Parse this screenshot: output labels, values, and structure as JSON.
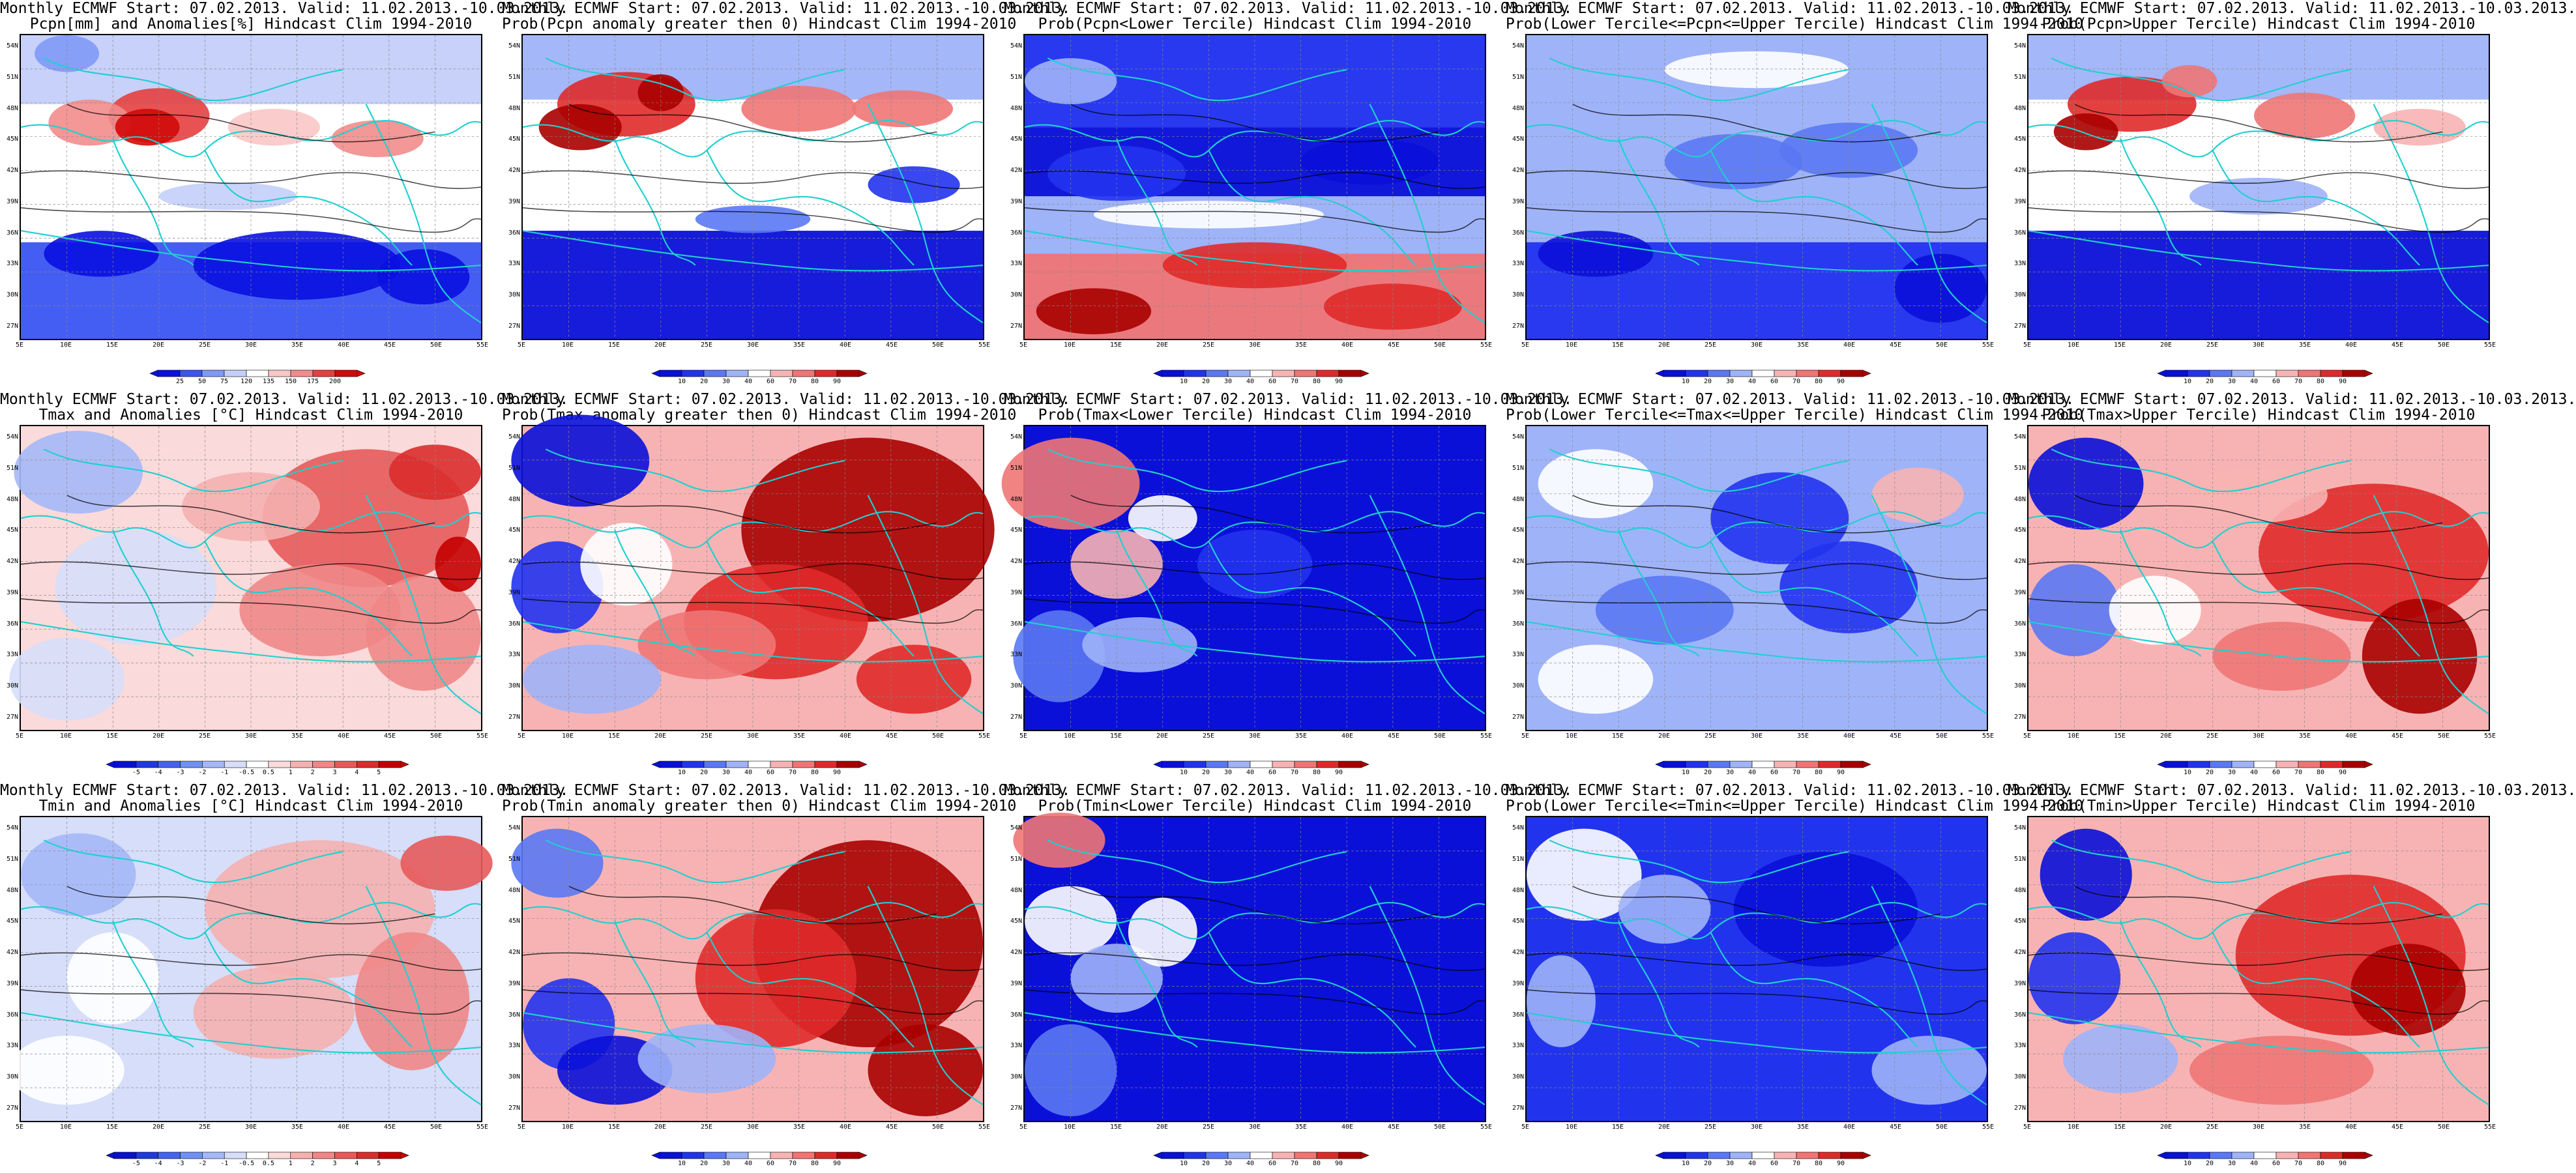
{
  "map": {
    "lat_labels": [
      "54N",
      "51N",
      "48N",
      "45N",
      "42N",
      "39N",
      "36N",
      "33N",
      "30N",
      "27N"
    ],
    "lon_labels": [
      "5E",
      "10E",
      "15E",
      "20E",
      "25E",
      "30E",
      "35E",
      "40E",
      "45E",
      "50E",
      "55E"
    ]
  },
  "colorbars": {
    "anom_pcpn": {
      "labels": [
        "25",
        "50",
        "75",
        "120",
        "135",
        "150",
        "175",
        "200"
      ],
      "colors": [
        "#0a10e0",
        "#3a55f2",
        "#7f99f6",
        "#c4cff9",
        "#ffffff",
        "#f9c7c7",
        "#f28c8c",
        "#e63f3f",
        "#d00a0a"
      ]
    },
    "prob": {
      "labels": [
        "10",
        "20",
        "30",
        "40",
        "60",
        "70",
        "80",
        "90"
      ],
      "colors": [
        "#0a10d8",
        "#2233ee",
        "#5a78f3",
        "#9fb3f8",
        "#ffffff",
        "#f7b3b3",
        "#ef7575",
        "#e02a2a",
        "#a80000"
      ]
    },
    "anom_temp": {
      "labels": [
        "-5",
        "-4",
        "-3",
        "-2",
        "-1",
        "-0.5",
        "0.5",
        "1",
        "2",
        "3",
        "4",
        "5"
      ],
      "colors": [
        "#0a10d0",
        "#2038e0",
        "#4563ec",
        "#7090f2",
        "#a5b8f7",
        "#d6def9",
        "#ffffff",
        "#fadada",
        "#f5b0b0",
        "#ef8787",
        "#e75a5a",
        "#dc2c2c",
        "#c40000"
      ]
    }
  },
  "panels": [
    {
      "id": "pcpn-anom",
      "t1": "Monthly ECMWF Start: 07.02.2013. Valid: 11.02.2013.-10.03.2013.",
      "t2": "Pcpn[mm] and Anomalies[%] Hindcast Clim 1994-2010",
      "field": "pcpn_anom",
      "cb": "anom_pcpn"
    },
    {
      "id": "pcpn-prob-gt0",
      "t1": "Monthly ECMWF Start: 07.02.2013. Valid: 11.02.2013.-10.03.2013.",
      "t2": "Prob(Pcpn anomaly greater then 0) Hindcast Clim 1994-2010",
      "field": "pcpn_prob",
      "cb": "prob"
    },
    {
      "id": "pcpn-prob-lower",
      "t1": "Monthly ECMWF Start: 07.02.2013. Valid: 11.02.2013.-10.03.2013.",
      "t2": "Prob(Pcpn<Lower Tercile) Hindcast Clim 1994-2010",
      "field": "pcpn_lower",
      "cb": "prob"
    },
    {
      "id": "pcpn-prob-middle",
      "t1": "Monthly ECMWF Start: 07.02.2013. Valid: 11.02.2013.-10.03.2013.",
      "t2": "Prob(Lower Tercile<=Pcpn<=Upper Tercile) Hindcast Clim 1994-2010",
      "field": "pcpn_mid",
      "cb": "prob"
    },
    {
      "id": "pcpn-prob-upper",
      "t1": "Monthly ECMWF Start: 07.02.2013. Valid: 11.02.2013.-10.03.2013.",
      "t2": "Prob(Pcpn>Upper Tercile) Hindcast Clim 1994-2010",
      "field": "pcpn_upper",
      "cb": "prob"
    },
    {
      "id": "tmax-anom",
      "t1": "Monthly ECMWF Start: 07.02.2013. Valid: 11.02.2013.-10.03.2013.",
      "t2": "Tmax and Anomalies [°C] Hindcast Clim 1994-2010",
      "field": "tmax_anom",
      "cb": "anom_temp"
    },
    {
      "id": "tmax-prob-gt0",
      "t1": "Monthly ECMWF Start: 07.02.2013. Valid: 11.02.2013.-10.03.2013.",
      "t2": "Prob(Tmax anomaly greater then 0) Hindcast Clim 1994-2010",
      "field": "tmax_prob",
      "cb": "prob"
    },
    {
      "id": "tmax-prob-lower",
      "t1": "Monthly ECMWF Start: 07.02.2013. Valid: 11.02.2013.-10.03.2013.",
      "t2": "Prob(Tmax<Lower Tercile) Hindcast Clim 1994-2010",
      "field": "tmax_lower",
      "cb": "prob"
    },
    {
      "id": "tmax-prob-middle",
      "t1": "Monthly ECMWF Start: 07.02.2013. Valid: 11.02.2013.-10.03.2013.",
      "t2": "Prob(Lower Tercile<=Tmax<=Upper Tercile) Hindcast Clim 1994-2010",
      "field": "tmax_mid",
      "cb": "prob"
    },
    {
      "id": "tmax-prob-upper",
      "t1": "Monthly ECMWF Start: 07.02.2013. Valid: 11.02.2013.-10.03.2013.",
      "t2": "Prob(Tmax>Upper Tercile) Hindcast Clim 1994-2010",
      "field": "tmax_upper",
      "cb": "prob"
    },
    {
      "id": "tmin-anom",
      "t1": "Monthly ECMWF Start: 07.02.2013. Valid: 11.02.2013.-10.03.2013.",
      "t2": "Tmin and Anomalies [°C] Hindcast Clim 1994-2010",
      "field": "tmin_anom",
      "cb": "anom_temp"
    },
    {
      "id": "tmin-prob-gt0",
      "t1": "Monthly ECMWF Start: 07.02.2013. Valid: 11.02.2013.-10.03.2013.",
      "t2": "Prob(Tmin anomaly greater then 0) Hindcast Clim 1994-2010",
      "field": "tmin_prob",
      "cb": "prob"
    },
    {
      "id": "tmin-prob-lower",
      "t1": "Monthly ECMWF Start: 07.02.2013. Valid: 11.02.2013.-10.03.2013.",
      "t2": "Prob(Tmin<Lower Tercile) Hindcast Clim 1994-2010",
      "field": "tmin_lower",
      "cb": "prob"
    },
    {
      "id": "tmin-prob-middle",
      "t1": "Monthly ECMWF Start: 07.02.2013. Valid: 11.02.2013.-10.03.2013.",
      "t2": "Prob(Lower Tercile<=Tmin<=Upper Tercile) Hindcast Clim 1994-2010",
      "field": "tmin_mid",
      "cb": "prob"
    },
    {
      "id": "tmin-prob-upper",
      "t1": "Monthly ECMWF Start: 07.02.2013. Valid: 11.02.2013.-10.03.2013.",
      "t2": "Prob(Tmin>Upper Tercile) Hindcast Clim 1994-2010",
      "field": "tmin_upper",
      "cb": "prob"
    }
  ]
}
